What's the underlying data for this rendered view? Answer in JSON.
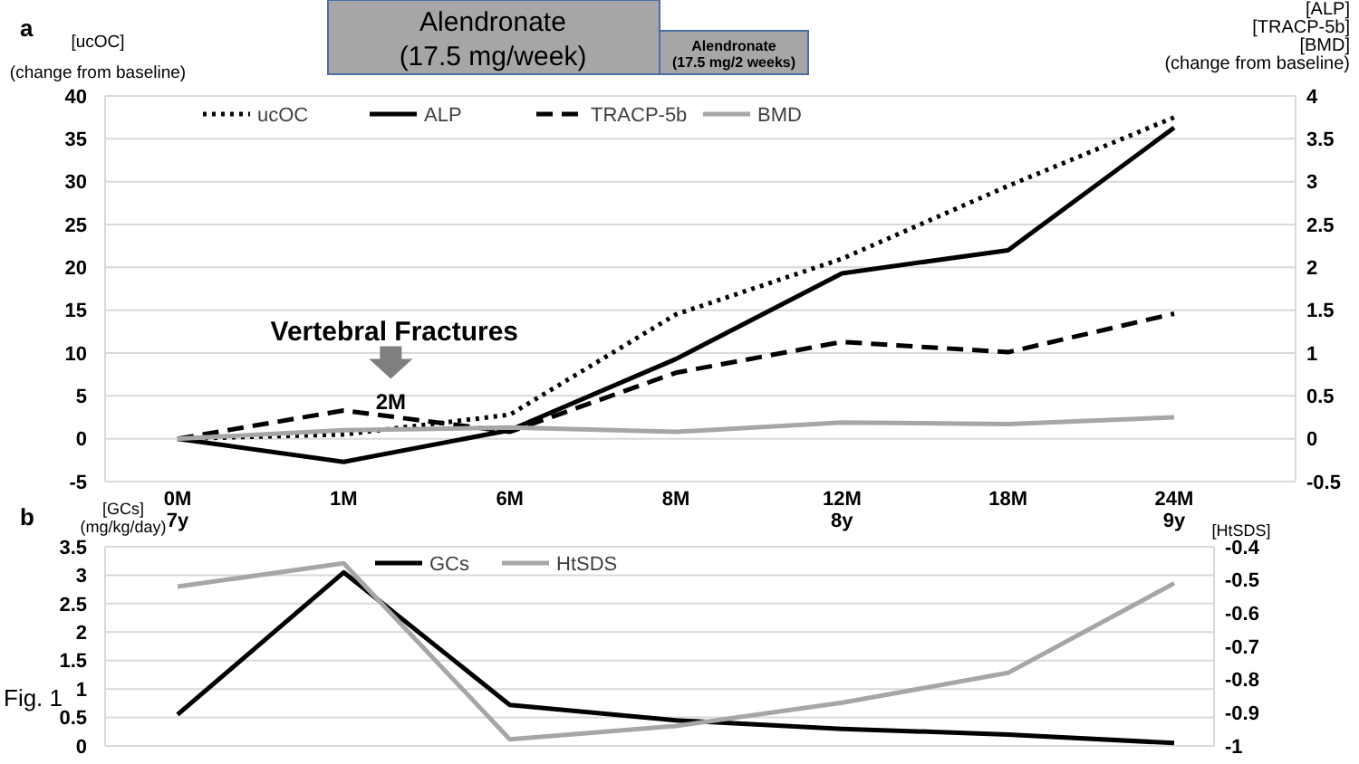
{
  "chart_data": [
    {
      "type": "line",
      "title": "a",
      "categories": [
        "0M\n7y",
        "1M",
        "6M",
        "8M",
        "12M\n8y",
        "18M",
        "24M\n9y"
      ],
      "series": [
        {
          "name": "ucOC",
          "color": "#000000",
          "line_style": "dotted",
          "values": [
            0,
            0.5,
            2.8,
            14.5,
            21,
            29.5,
            37.5
          ]
        },
        {
          "name": "ALP",
          "color": "#000000",
          "line_style": "solid",
          "axis": "y2",
          "values": [
            0,
            -0.27,
            0.1,
            0.93,
            1.93,
            2.2,
            3.63
          ]
        },
        {
          "name": "TRACP-5b",
          "color": "#000000",
          "line_style": "dashed",
          "axis": "y2",
          "values": [
            0,
            0.33,
            0.08,
            0.77,
            1.13,
            1.01,
            1.46
          ]
        },
        {
          "name": "BMD",
          "color": "#a6a6a6",
          "line_style": "solid",
          "axis": "y2",
          "values": [
            0,
            0.1,
            0.13,
            0.08,
            0.19,
            0.17,
            0.25
          ]
        }
      ],
      "ylabel": "[ucOC]\n(change from baseline)",
      "y2label": "[ALP]\n[TRACP-5b]\n[BMD]\n(change from baseline)",
      "ylim": [
        -5,
        40
      ],
      "yticks": [
        -5,
        0,
        5,
        10,
        15,
        20,
        25,
        30,
        35,
        40
      ],
      "y2lim": [
        -0.5,
        4
      ],
      "y2ticks": [
        -0.5,
        0,
        0.5,
        1,
        1.5,
        2,
        2.5,
        3,
        3.5,
        4
      ],
      "grid": "y",
      "legend": "top",
      "annotations": [
        "Alendronate\n(17.5 mg/week)",
        "Alendronate\n(17.5 mg/2 weeks)",
        "Vertebral Fractures",
        "2M"
      ]
    },
    {
      "type": "line",
      "title": "b",
      "categories": [
        null,
        null,
        null,
        null,
        null,
        null,
        null
      ],
      "tick_labels": "y",
      "series": [
        {
          "name": "GCs",
          "color": "#000000",
          "values": [
            0.55,
            3.05,
            0.72,
            0.45,
            0.3,
            0.2,
            0.05
          ]
        },
        {
          "name": "HtSDS",
          "color": "#a6a6a6",
          "axis": "y2",
          "values": [
            -0.52,
            -0.45,
            -0.98,
            -0.94,
            -0.87,
            -0.78,
            -0.51
          ]
        }
      ],
      "ylabel": "[GCs]\n(mg/kg/day)",
      "y2label": "[HtSDS]",
      "ylim": [
        0,
        3.5
      ],
      "yticks": [
        0,
        0.5,
        1,
        1.5,
        2,
        2.5,
        3,
        3.5
      ],
      "y2lim": [
        -1,
        -0.4
      ],
      "y2ticks": [
        -1,
        -0.9,
        -0.8,
        -0.7,
        -0.6,
        -0.5,
        -0.4
      ],
      "grid": "y",
      "legend": "top",
      "annotations": [
        "Fig. 1"
      ]
    }
  ]
}
